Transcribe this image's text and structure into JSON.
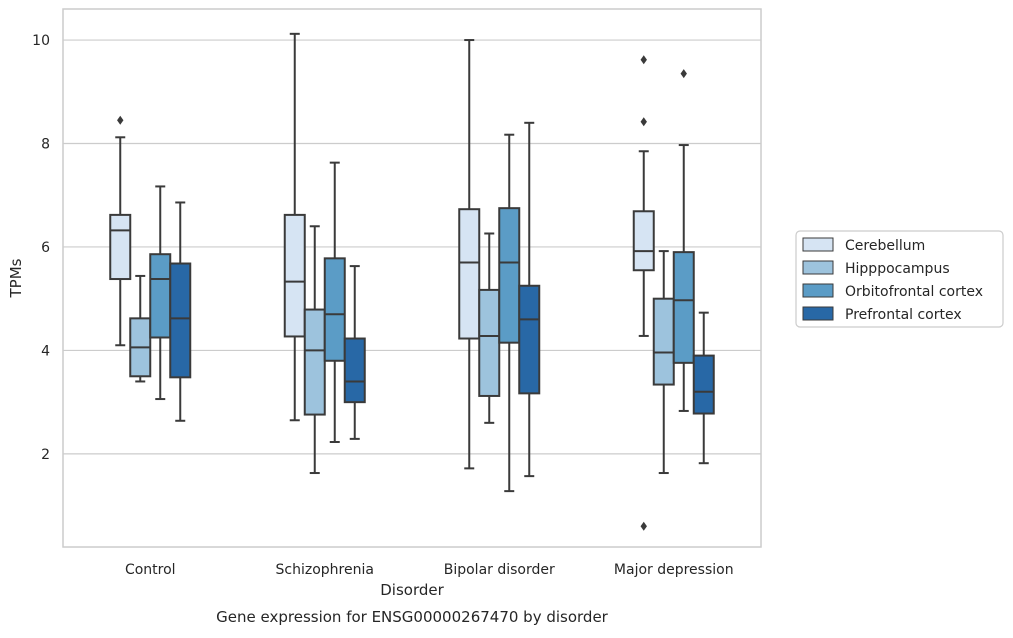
{
  "chart_data": {
    "type": "box",
    "title": "",
    "caption": "Gene expression for ENSG00000267470 by disorder",
    "xlabel": "Disorder",
    "ylabel": "TPMs",
    "ylim": [
      0.2,
      10.6
    ],
    "yticks": [
      2,
      4,
      6,
      8,
      10
    ],
    "grid": "horizontal",
    "legend_position": "right",
    "categories": [
      "Control",
      "Schizophrenia",
      "Bipolar disorder",
      "Major depression"
    ],
    "series": [
      {
        "name": "Cerebellum",
        "color": "#d6e4f3",
        "boxes": [
          {
            "whisker_low": 4.1,
            "q1": 5.38,
            "median": 6.32,
            "q3": 6.62,
            "whisker_high": 8.12,
            "outliers": [
              8.45
            ]
          },
          {
            "whisker_low": 2.65,
            "q1": 4.27,
            "median": 5.33,
            "q3": 6.62,
            "whisker_high": 10.12,
            "outliers": []
          },
          {
            "whisker_low": 1.72,
            "q1": 4.23,
            "median": 5.7,
            "q3": 6.73,
            "whisker_high": 10.0,
            "outliers": []
          },
          {
            "whisker_low": 4.28,
            "q1": 5.55,
            "median": 5.92,
            "q3": 6.69,
            "whisker_high": 7.85,
            "outliers": [
              9.62,
              8.42,
              0.6
            ]
          }
        ]
      },
      {
        "name": "Hipppocampus",
        "color": "#9dc3dd",
        "boxes": [
          {
            "whisker_low": 3.4,
            "q1": 3.5,
            "median": 4.06,
            "q3": 4.62,
            "whisker_high": 5.44,
            "outliers": []
          },
          {
            "whisker_low": 1.63,
            "q1": 2.76,
            "median": 4.0,
            "q3": 4.79,
            "whisker_high": 6.4,
            "outliers": []
          },
          {
            "whisker_low": 2.6,
            "q1": 3.12,
            "median": 4.28,
            "q3": 5.17,
            "whisker_high": 6.26,
            "outliers": []
          },
          {
            "whisker_low": 1.63,
            "q1": 3.34,
            "median": 3.96,
            "q3": 5.0,
            "whisker_high": 5.92,
            "outliers": []
          }
        ]
      },
      {
        "name": "Orbitofrontal cortex",
        "color": "#5b9cc6",
        "boxes": [
          {
            "whisker_low": 3.06,
            "q1": 4.25,
            "median": 5.38,
            "q3": 5.86,
            "whisker_high": 7.17,
            "outliers": []
          },
          {
            "whisker_low": 2.23,
            "q1": 3.8,
            "median": 4.7,
            "q3": 5.78,
            "whisker_high": 7.63,
            "outliers": []
          },
          {
            "whisker_low": 1.28,
            "q1": 4.15,
            "median": 5.7,
            "q3": 6.75,
            "whisker_high": 8.17,
            "outliers": []
          },
          {
            "whisker_low": 2.83,
            "q1": 3.76,
            "median": 4.97,
            "q3": 5.9,
            "whisker_high": 7.97,
            "outliers": [
              9.35
            ]
          }
        ]
      },
      {
        "name": "Prefrontal cortex",
        "color": "#2868a6",
        "boxes": [
          {
            "whisker_low": 2.64,
            "q1": 3.48,
            "median": 4.62,
            "q3": 5.68,
            "whisker_high": 6.86,
            "outliers": []
          },
          {
            "whisker_low": 2.29,
            "q1": 3.0,
            "median": 3.4,
            "q3": 4.23,
            "whisker_high": 5.63,
            "outliers": []
          },
          {
            "whisker_low": 1.57,
            "q1": 3.17,
            "median": 4.6,
            "q3": 5.25,
            "whisker_high": 8.4,
            "outliers": []
          },
          {
            "whisker_low": 1.82,
            "q1": 2.78,
            "median": 3.2,
            "q3": 3.9,
            "whisker_high": 4.73,
            "outliers": []
          }
        ]
      }
    ]
  }
}
